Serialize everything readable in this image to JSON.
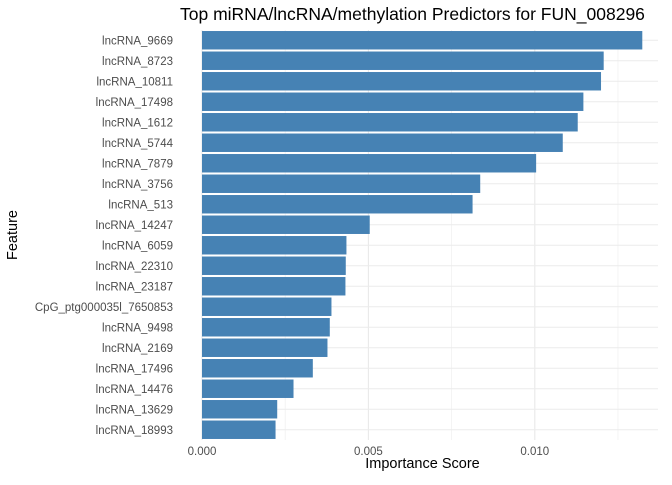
{
  "chart_data": {
    "type": "bar",
    "orientation": "horizontal",
    "title": "Top miRNA/lncRNA/methylation Predictors for FUN_008296",
    "xlabel": "Importance Score",
    "ylabel": "Feature",
    "xlim": [
      0,
      0.0133
    ],
    "x_ticks": [
      0,
      0.005,
      0.01
    ],
    "x_tick_labels": [
      "0.000",
      "0.005",
      "0.010"
    ],
    "grid": true,
    "bar_color": "#4682B4",
    "categories": [
      "lncRNA_9669",
      "lncRNA_8723",
      "lncRNA_10811",
      "lncRNA_17498",
      "lncRNA_1612",
      "lncRNA_5744",
      "lncRNA_7879",
      "lncRNA_3756",
      "lncRNA_513",
      "lncRNA_14247",
      "lncRNA_6059",
      "lncRNA_22310",
      "lncRNA_23187",
      "CpG_ptg000035l_7650853",
      "lncRNA_9498",
      "lncRNA_2169",
      "lncRNA_17496",
      "lncRNA_14476",
      "lncRNA_13629",
      "lncRNA_18993"
    ],
    "values": [
      0.01323,
      0.01207,
      0.01199,
      0.01146,
      0.01129,
      0.01084,
      0.01004,
      0.00836,
      0.00813,
      0.00504,
      0.00434,
      0.00432,
      0.00431,
      0.00389,
      0.00384,
      0.00377,
      0.00333,
      0.00275,
      0.00226,
      0.00221
    ]
  }
}
